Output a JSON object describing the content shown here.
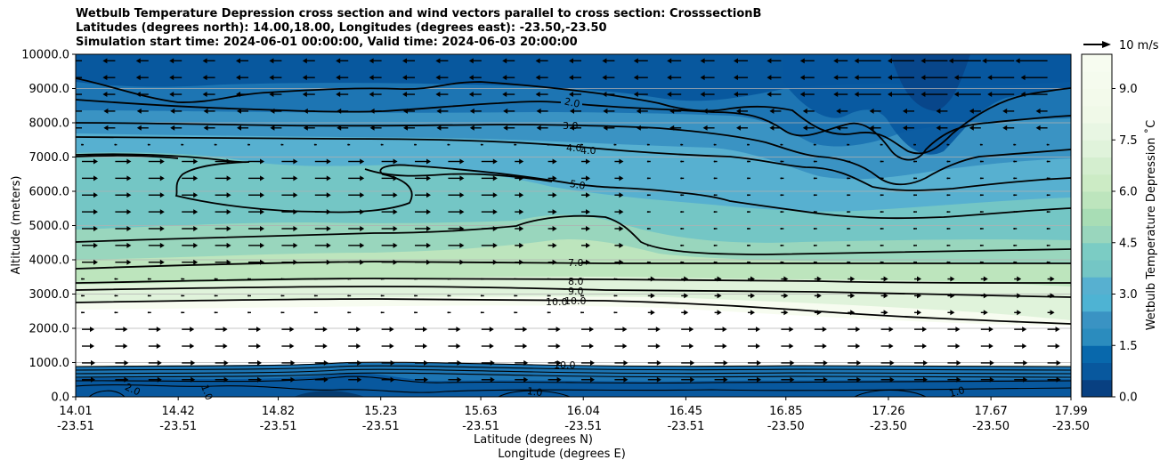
{
  "title": {
    "line1": "Wetbulb Temperature Depression cross section and wind vectors parallel to cross section: CrosssectionB",
    "line2": "Latitudes (degrees north): 14.00,18.00, Longitudes (degrees east): -23.50,-23.50",
    "line3": "Simulation start time: 2024-06-01 00:00:00, Valid time: 2024-06-03 20:00:00"
  },
  "colors": {
    "c0": "#08589e",
    "c1": "#1d75b3",
    "c2": "#3a93c3",
    "c3": "#57b0d0",
    "c4": "#74c6c5",
    "c5": "#99d6bd",
    "c6": "#bde5bd",
    "c7": "#e0f3db",
    "c8": "#f7fcf0",
    "white": "#ffffff"
  },
  "chart_data": {
    "type": "contour cross-section with wind vectors",
    "title": "Wetbulb Temperature Depression cross section and wind vectors parallel to cross section: CrosssectionB",
    "xlabel": "Latitude (degrees N)",
    "xlabel2": "Longitude (degrees E)",
    "ylabel": "Altitude (meters)",
    "ylim": [
      0,
      10000
    ],
    "yticks": [
      "0.0",
      "1000.0",
      "2000.0",
      "3000.0",
      "4000.0",
      "5000.0",
      "6000.0",
      "7000.0",
      "8000.0",
      "9000.0",
      "10000.0"
    ],
    "yvalues": [
      0,
      1000,
      2000,
      3000,
      4000,
      5000,
      6000,
      7000,
      8000,
      9000,
      10000
    ],
    "xlim": [
      14.01,
      17.99
    ],
    "xticks": [
      {
        "lat": "14.01",
        "lon": "-23.51",
        "v": 14.01
      },
      {
        "lat": "14.42",
        "lon": "-23.51",
        "v": 14.42
      },
      {
        "lat": "14.82",
        "lon": "-23.51",
        "v": 14.82
      },
      {
        "lat": "15.23",
        "lon": "-23.51",
        "v": 15.23
      },
      {
        "lat": "15.63",
        "lon": "-23.51",
        "v": 15.63
      },
      {
        "lat": "16.04",
        "lon": "-23.51",
        "v": 16.04
      },
      {
        "lat": "16.45",
        "lon": "-23.51",
        "v": 16.45
      },
      {
        "lat": "16.85",
        "lon": "-23.50",
        "v": 16.85
      },
      {
        "lat": "17.26",
        "lon": "-23.50",
        "v": 17.26
      },
      {
        "lat": "17.67",
        "lon": "-23.50",
        "v": 17.67
      },
      {
        "lat": "17.99",
        "lon": "-23.50",
        "v": 17.99
      }
    ],
    "colorbar": {
      "label": "Wetbulb Temperature Depression $^\\circ$C",
      "label_display": "Wetbulb Temperature Depression ˚C",
      "ticks": [
        "0.0",
        "1.5",
        "3.0",
        "4.5",
        "6.0",
        "7.5",
        "9.0"
      ],
      "values": [
        0,
        1.5,
        3.0,
        4.5,
        6.0,
        7.5,
        9.0
      ],
      "range": [
        0,
        10
      ]
    },
    "contour_labels": [
      "2.0",
      "3.0",
      "4.0",
      "4.0",
      "5.0",
      "7.0",
      "8.0",
      "9.0",
      "10.0",
      "10.0",
      "1.0",
      "1.0",
      "2.0",
      "1.0",
      "10.0"
    ],
    "quiver_key": {
      "value": 10,
      "label": "10 m/s"
    },
    "wind_description": "Easterly (leftward) winds above ~7500 m, westerly (rightward) winds below ~7000 m"
  }
}
